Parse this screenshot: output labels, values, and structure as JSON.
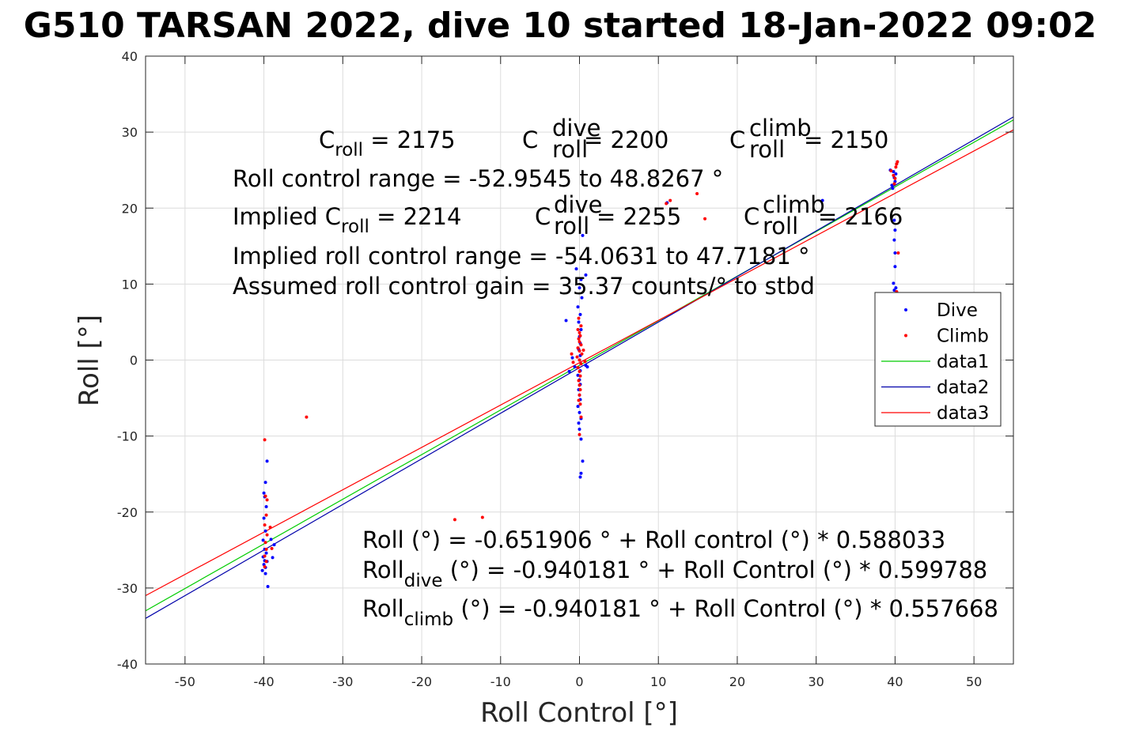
{
  "chart_data": {
    "type": "scatter",
    "title": "G510 TARSAN 2022, dive 10 started 18-Jan-2022 09:02",
    "xlabel": "Roll Control [°]",
    "ylabel": "Roll [°]",
    "xlim": [
      -55,
      55
    ],
    "ylim": [
      -40,
      40
    ],
    "xticks": [
      -50,
      -40,
      -30,
      -20,
      -10,
      0,
      10,
      20,
      30,
      40,
      50
    ],
    "yticks": [
      -40,
      -30,
      -20,
      -10,
      0,
      10,
      20,
      30,
      40
    ],
    "grid": true,
    "legend_position": "right",
    "legend": [
      {
        "label": "Dive",
        "kind": "marker",
        "color": "#0000ff"
      },
      {
        "label": "Climb",
        "kind": "marker",
        "color": "#ff0000"
      },
      {
        "label": "data1",
        "kind": "line",
        "color": "#00cc00"
      },
      {
        "label": "data2",
        "kind": "line",
        "color": "#0000aa"
      },
      {
        "label": "data3",
        "kind": "line",
        "color": "#ff0000"
      }
    ],
    "lines": [
      {
        "name": "data1",
        "color": "#00cc00",
        "x": [
          -55,
          55
        ],
        "y": [
          -33.0,
          31.6
        ]
      },
      {
        "name": "data2",
        "color": "#0000aa",
        "x": [
          -55,
          55
        ],
        "y": [
          -34.0,
          32.0
        ]
      },
      {
        "name": "data3",
        "color": "#ff0000",
        "x": [
          -55,
          55
        ],
        "y": [
          -31.0,
          30.3
        ]
      }
    ],
    "series": [
      {
        "name": "Dive",
        "color": "#0000ff",
        "points": [
          [
            -39.8,
            -16.1
          ],
          [
            -39.6,
            -13.3
          ],
          [
            -40.0,
            -17.5
          ],
          [
            -39.9,
            -18.0
          ],
          [
            -39.7,
            -19.3
          ],
          [
            -40.0,
            -20.8
          ],
          [
            -39.8,
            -22.5
          ],
          [
            -40.1,
            -23.7
          ],
          [
            -39.9,
            -24.9
          ],
          [
            -39.7,
            -25.4
          ],
          [
            -40.1,
            -25.9
          ],
          [
            -39.9,
            -26.4
          ],
          [
            -40.0,
            -26.9
          ],
          [
            -39.8,
            -27.3
          ],
          [
            -40.2,
            -27.7
          ],
          [
            -39.8,
            -28.1
          ],
          [
            -39.5,
            -29.8
          ],
          [
            -39.6,
            -26.5
          ],
          [
            -38.9,
            -26.0
          ],
          [
            -39.1,
            -23.6
          ],
          [
            -38.7,
            -24.3
          ],
          [
            0.1,
            -15.4
          ],
          [
            0.2,
            -14.9
          ],
          [
            0.4,
            -13.3
          ],
          [
            0.2,
            -10.4
          ],
          [
            0.0,
            -9.1
          ],
          [
            -0.1,
            -8.3
          ],
          [
            0.2,
            -7.7
          ],
          [
            0.0,
            -6.9
          ],
          [
            -0.2,
            -6.1
          ],
          [
            0.1,
            -5.2
          ],
          [
            0.0,
            -4.6
          ],
          [
            -0.1,
            -3.9
          ],
          [
            0.1,
            -3.2
          ],
          [
            0.0,
            -2.6
          ],
          [
            -0.2,
            -2.0
          ],
          [
            0.1,
            -1.4
          ],
          [
            -0.6,
            -0.9
          ],
          [
            -1.3,
            -1.5
          ],
          [
            0.8,
            -0.7
          ],
          [
            1.0,
            -0.9
          ],
          [
            -0.9,
            0.3
          ],
          [
            0.0,
            0.0
          ],
          [
            0.1,
            0.6
          ],
          [
            -0.1,
            1.4
          ],
          [
            0.1,
            2.2
          ],
          [
            0.0,
            3.1
          ],
          [
            0.2,
            4.0
          ],
          [
            -0.1,
            5.0
          ],
          [
            0.1,
            6.0
          ],
          [
            -0.2,
            7.0
          ],
          [
            0.3,
            8.2
          ],
          [
            0.0,
            9.5
          ],
          [
            0.2,
            10.6
          ],
          [
            -0.4,
            12.0
          ],
          [
            0.4,
            16.4
          ],
          [
            -1.7,
            5.2
          ],
          [
            0.8,
            11.2
          ],
          [
            39.4,
            25.0
          ],
          [
            39.8,
            24.8
          ],
          [
            40.1,
            24.5
          ],
          [
            39.9,
            24.0
          ],
          [
            40.0,
            23.5
          ],
          [
            39.7,
            22.6
          ],
          [
            39.9,
            18.4
          ],
          [
            40.0,
            17.1
          ],
          [
            39.9,
            15.8
          ],
          [
            40.0,
            14.1
          ],
          [
            39.8,
            10.1
          ],
          [
            40.1,
            9.5
          ],
          [
            39.9,
            9.2
          ],
          [
            40.0,
            12.3
          ],
          [
            39.6,
            23.0
          ],
          [
            30.8,
            21.0
          ],
          [
            11.1,
            20.7
          ]
        ]
      },
      {
        "name": "Climb",
        "color": "#ff0000",
        "points": [
          [
            -39.9,
            -10.5
          ],
          [
            -39.8,
            -17.9
          ],
          [
            -39.6,
            -18.4
          ],
          [
            -39.7,
            -20.4
          ],
          [
            -39.9,
            -21.7
          ],
          [
            -39.6,
            -23.0
          ],
          [
            -39.8,
            -24.0
          ],
          [
            -39.7,
            -24.9
          ],
          [
            -39.9,
            -25.8
          ],
          [
            -39.7,
            -26.5
          ],
          [
            -39.9,
            -27.2
          ],
          [
            -39.2,
            -22.0
          ],
          [
            -39.0,
            -24.8
          ],
          [
            -34.6,
            -7.5
          ],
          [
            -15.8,
            -21.0
          ],
          [
            -12.3,
            -20.7
          ],
          [
            0.0,
            -9.8
          ],
          [
            0.2,
            -7.5
          ],
          [
            0.1,
            -5.8
          ],
          [
            -0.1,
            -5.3
          ],
          [
            0.0,
            -4.6
          ],
          [
            0.1,
            -3.9
          ],
          [
            0.0,
            -3.3
          ],
          [
            -0.1,
            -2.7
          ],
          [
            0.1,
            -2.1
          ],
          [
            0.0,
            -1.5
          ],
          [
            -0.2,
            -1.0
          ],
          [
            0.2,
            -0.5
          ],
          [
            0.0,
            0.0
          ],
          [
            -0.3,
            0.4
          ],
          [
            0.3,
            0.8
          ],
          [
            0.0,
            1.2
          ],
          [
            -0.2,
            1.6
          ],
          [
            0.2,
            2.0
          ],
          [
            0.0,
            2.4
          ],
          [
            -0.1,
            2.8
          ],
          [
            0.1,
            3.2
          ],
          [
            0.0,
            3.6
          ],
          [
            -0.2,
            4.0
          ],
          [
            0.2,
            4.5
          ],
          [
            -0.1,
            5.5
          ],
          [
            -1.0,
            0.8
          ],
          [
            -0.8,
            -0.3
          ],
          [
            0.7,
            -0.2
          ],
          [
            0.5,
            1.3
          ],
          [
            11.0,
            20.6
          ],
          [
            11.5,
            21.0
          ],
          [
            14.9,
            21.9
          ],
          [
            15.9,
            18.6
          ],
          [
            39.5,
            24.9
          ],
          [
            40.3,
            26.1
          ],
          [
            40.1,
            25.4
          ],
          [
            39.8,
            24.3
          ],
          [
            40.0,
            23.9
          ],
          [
            40.2,
            25.8
          ],
          [
            39.9,
            23.2
          ],
          [
            40.4,
            14.1
          ],
          [
            40.2,
            9.0
          ]
        ]
      }
    ],
    "annotations": {
      "c_roll": {
        "base": "C",
        "sub": "roll",
        "eq": " = 2175"
      },
      "c_dive": {
        "base": "C",
        "sup": "dive",
        "sub": "roll",
        "eq": " = 2200"
      },
      "c_climb": {
        "base": "C",
        "sup": "climb",
        "sub": "roll",
        "eq": " = 2150"
      },
      "range": "Roll control range = -52.9545 to 48.8267 °",
      "implied_lead": "Implied C",
      "implied_sub": "roll",
      "implied_eq": " = 2214",
      "implied_dive": {
        "base": "C",
        "sup": "dive",
        "sub": "roll",
        "eq": " = 2255"
      },
      "implied_climb": {
        "base": "C",
        "sup": "climb",
        "sub": "roll",
        "eq": " = 2166"
      },
      "implied_range": "Implied roll control range = -54.0631 to 47.7181 °",
      "gain": "Assumed roll control gain = 35.37 counts/° to stbd",
      "fit_all": "Roll (°) = -0.651906 ° + Roll control (°) * 0.588033",
      "fit_dive_base": "Roll",
      "fit_dive_sub": "dive",
      "fit_dive_rest": " (°) = -0.940181 ° + Roll Control (°) * 0.599788",
      "fit_climb_base": "Roll",
      "fit_climb_sub": "climb",
      "fit_climb_rest": " (°) = -0.940181 ° + Roll Control (°) * 0.557668"
    }
  }
}
